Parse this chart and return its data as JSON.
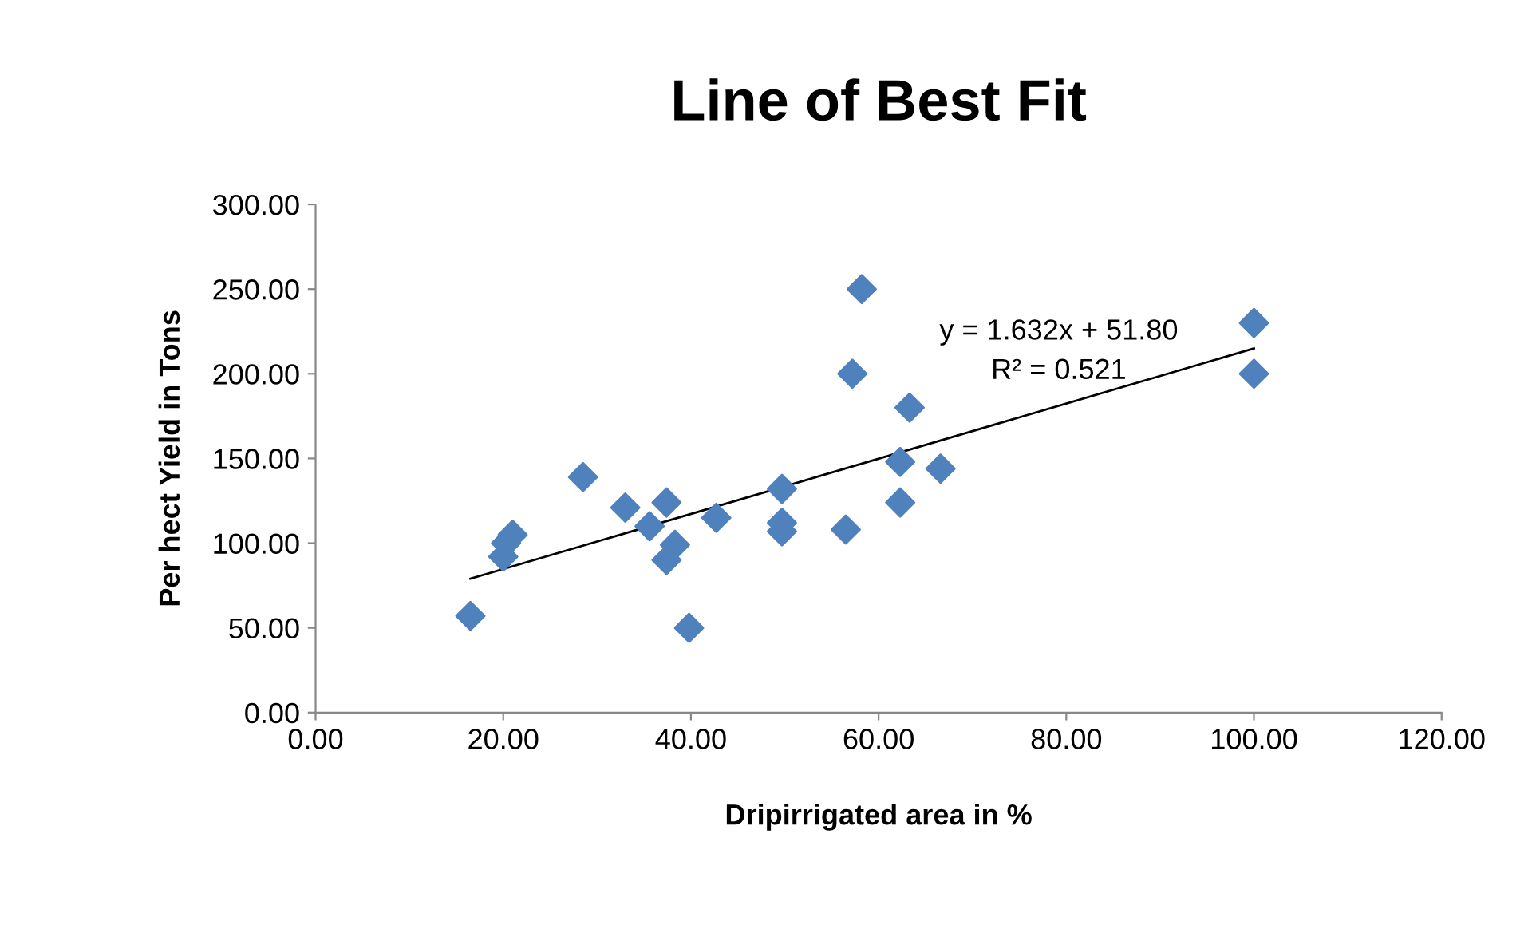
{
  "chart_data": {
    "type": "scatter",
    "title": "Line of Best Fit",
    "xlabel": "Dripirrigated area in %",
    "ylabel": "Per hect Yield in Tons",
    "xlim": [
      0,
      120
    ],
    "xticks": [
      {
        "value": 0,
        "label": "0.00"
      },
      {
        "value": 20,
        "label": "20.00"
      },
      {
        "value": 40,
        "label": "40.00"
      },
      {
        "value": 60,
        "label": "60.00"
      },
      {
        "value": 80,
        "label": "80.00"
      },
      {
        "value": 100,
        "label": "100.00"
      },
      {
        "value": 120,
        "label": "120.00"
      }
    ],
    "ylim": [
      0,
      300
    ],
    "yticks": [
      {
        "value": 0,
        "label": "0.00"
      },
      {
        "value": 50,
        "label": "50.00"
      },
      {
        "value": 100,
        "label": "100.00"
      },
      {
        "value": 150,
        "label": "150.00"
      },
      {
        "value": 200,
        "label": "200.00"
      },
      {
        "value": 250,
        "label": "250.00"
      },
      {
        "value": 300,
        "label": "300.00"
      }
    ],
    "grid": false,
    "legend": false,
    "series": [
      {
        "marker": "diamond",
        "color": "#4f81bd",
        "x": [
          16.5,
          20,
          20.3,
          21,
          28.5,
          33,
          35.6,
          37.4,
          37.4,
          38.3,
          39.8,
          42.7,
          49.7,
          49.7,
          49.7,
          56.5,
          57.2,
          58.2,
          63.3,
          62.3,
          62.3,
          66.6,
          100,
          100
        ],
        "values": [
          57,
          92,
          100,
          105,
          139,
          121,
          110,
          124,
          90,
          99,
          50,
          115,
          132,
          112,
          107,
          108,
          200,
          250,
          180,
          148,
          124,
          144,
          230,
          200
        ]
      },
      {
        "type": "line",
        "color": "#000000",
        "x": [
          16.5,
          100
        ],
        "values": [
          79,
          215
        ]
      }
    ],
    "annotations": [
      "y = 1.632x + 51.80\nR² = 0.521"
    ]
  }
}
